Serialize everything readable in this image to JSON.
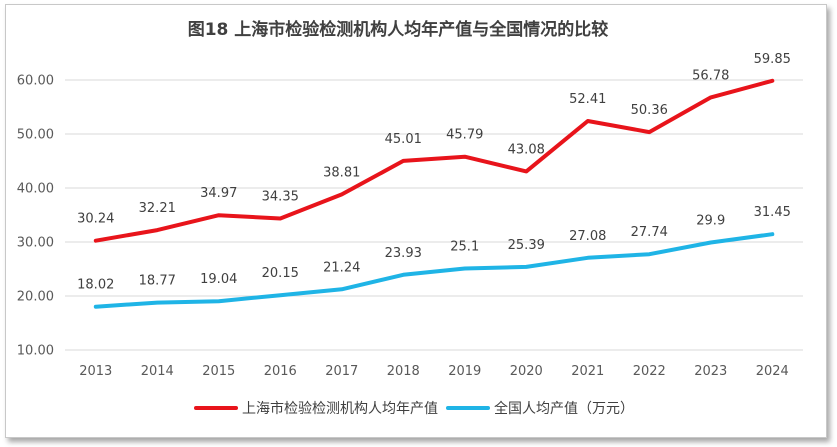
{
  "chart_data": {
    "type": "line",
    "title": "图18  上海市检验检测机构人均年产值与全国情况的比较",
    "xlabel": "",
    "ylabel": "",
    "categories": [
      "2013",
      "2014",
      "2015",
      "2016",
      "2017",
      "2018",
      "2019",
      "2020",
      "2021",
      "2022",
      "2023",
      "2024"
    ],
    "ylim": [
      10,
      60
    ],
    "yticks": [
      10,
      20,
      30,
      40,
      50,
      60
    ],
    "ytick_labels": [
      "10.00",
      "20.00",
      "30.00",
      "40.00",
      "50.00",
      "60.00"
    ],
    "grid": true,
    "legend_position": "bottom",
    "series": [
      {
        "name": "上海市检验检测机构人均年产值",
        "color": "#e8141b",
        "values": [
          30.24,
          32.21,
          34.97,
          34.35,
          38.81,
          45.01,
          45.79,
          43.08,
          52.41,
          50.36,
          56.78,
          59.85
        ],
        "labels": [
          "30.24",
          "32.21",
          "34.97",
          "34.35",
          "38.81",
          "45.01",
          "45.79",
          "43.08",
          "52.41",
          "50.36",
          "56.78",
          "59.85"
        ]
      },
      {
        "name": "全国人均产值（万元）",
        "color": "#1fb4e6",
        "values": [
          18.02,
          18.77,
          19.04,
          20.15,
          21.24,
          23.93,
          25.1,
          25.39,
          27.08,
          27.74,
          29.9,
          31.45
        ],
        "labels": [
          "18.02",
          "18.77",
          "19.04",
          "20.15",
          "21.24",
          "23.93",
          "25.1",
          "25.39",
          "27.08",
          "27.74",
          "29.9",
          "31.45"
        ]
      }
    ]
  }
}
